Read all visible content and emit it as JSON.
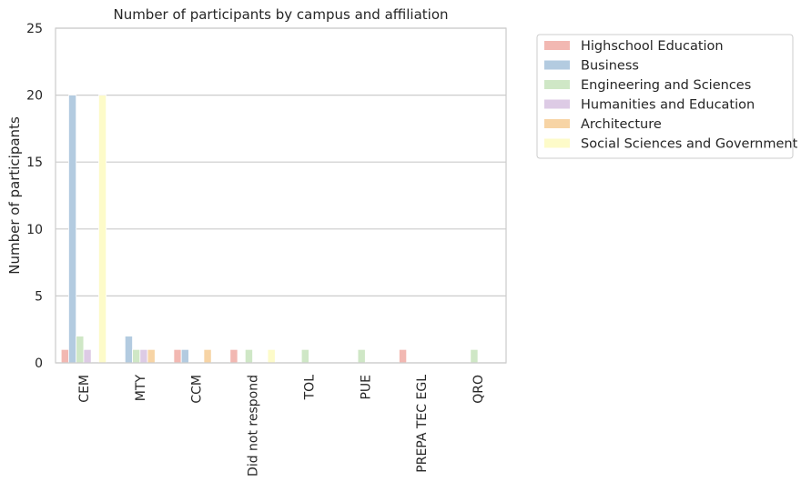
{
  "chart_data": {
    "type": "bar",
    "title": "Number of participants by campus and affiliation",
    "xlabel": "",
    "ylabel": "Number of participants",
    "ylim": [
      0,
      25
    ],
    "yticks": [
      0,
      5,
      10,
      15,
      20,
      25
    ],
    "grid": true,
    "legend_position": "outside-right",
    "categories": [
      "CEM",
      "MTY",
      "CCM",
      "Did not respond",
      "TOL",
      "PUE",
      "PREPA TEC EGL",
      "QRO"
    ],
    "series": [
      {
        "name": "Highschool Education",
        "color": "#f2b8b2",
        "values": [
          1,
          0,
          1,
          1,
          0,
          0,
          1,
          0
        ]
      },
      {
        "name": "Business",
        "color": "#b3cbe0",
        "values": [
          20,
          2,
          1,
          0,
          0,
          0,
          0,
          0
        ]
      },
      {
        "name": "Engineering and Sciences",
        "color": "#cfe7c6",
        "values": [
          2,
          1,
          0,
          1,
          1,
          1,
          0,
          1
        ]
      },
      {
        "name": "Humanities and Education",
        "color": "#ddcbe5",
        "values": [
          1,
          1,
          0,
          0,
          0,
          0,
          0,
          0
        ]
      },
      {
        "name": "Architecture",
        "color": "#f7d4a5",
        "values": [
          0,
          1,
          1,
          0,
          0,
          0,
          0,
          0
        ]
      },
      {
        "name": "Social Sciences and Government",
        "color": "#fdfbc9",
        "values": [
          20,
          0,
          0,
          1,
          0,
          0,
          0,
          0
        ]
      }
    ]
  }
}
